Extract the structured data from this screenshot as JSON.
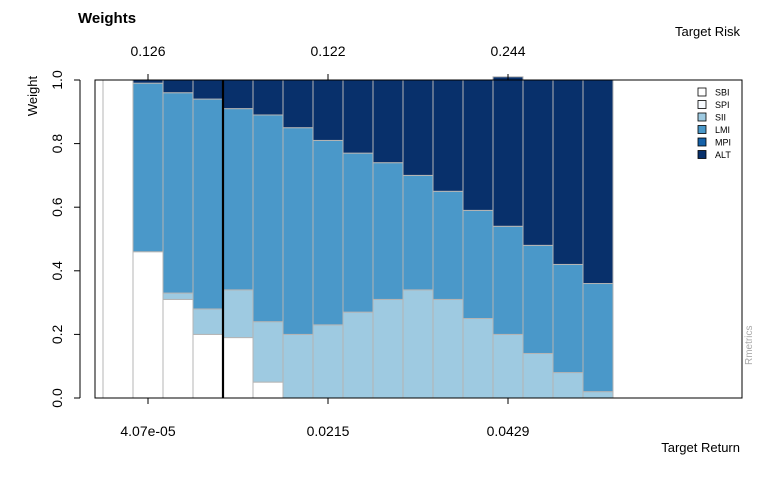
{
  "chart_data": {
    "type": "bar",
    "stacked": true,
    "title": "Weights",
    "ylabel": "Weight",
    "xlabel": "Target Return",
    "top_axis_label": "Target Risk",
    "ylim": [
      0,
      1
    ],
    "y_ticks": [
      "0.0",
      "0.2",
      "0.4",
      "0.6",
      "0.8",
      "1.0"
    ],
    "x_tick_labels": [
      {
        "index": 1,
        "label": "4.07e-05"
      },
      {
        "index": 7,
        "label": "0.0215"
      },
      {
        "index": 13,
        "label": "0.0429"
      }
    ],
    "top_tick_labels": [
      {
        "index": 1,
        "label": "0.126"
      },
      {
        "index": 7,
        "label": "0.122"
      },
      {
        "index": 13,
        "label": "0.244"
      }
    ],
    "vertical_marker_after_index": 3,
    "legend_position": "top-right",
    "watermark": "Rmetrics",
    "series": [
      {
        "name": "SBI",
        "color": "#ffffff",
        "values": [
          1.0,
          0.46,
          0.31,
          0.2,
          0.19,
          0.05,
          0,
          0,
          0,
          0,
          0,
          0,
          0,
          0,
          0,
          0,
          0
        ]
      },
      {
        "name": "SPI",
        "color": "#f7fbff",
        "values": [
          0,
          0,
          0,
          0,
          0,
          0,
          0,
          0,
          0,
          0,
          0,
          0,
          0,
          0,
          0,
          0,
          0
        ]
      },
      {
        "name": "SII",
        "color": "#9ecae1",
        "values": [
          0,
          0,
          0.02,
          0.08,
          0.15,
          0.19,
          0.2,
          0.23,
          0.27,
          0.31,
          0.34,
          0.31,
          0.25,
          0.2,
          0.14,
          0.08,
          0.02
        ]
      },
      {
        "name": "LMI",
        "color": "#4a98c9",
        "values": [
          0,
          0.53,
          0.63,
          0.66,
          0.57,
          0.65,
          0.65,
          0.58,
          0.5,
          0.43,
          0.36,
          0.34,
          0.34,
          0.34,
          0.34,
          0.34,
          0.34
        ]
      },
      {
        "name": "MPI",
        "color": "#1561a8",
        "values": [
          0,
          0,
          0,
          0,
          0,
          0,
          0,
          0,
          0,
          0,
          0,
          0,
          0,
          0,
          0,
          0,
          0
        ]
      },
      {
        "name": "ALT",
        "color": "#08306b",
        "values": [
          0,
          0.01,
          0.04,
          0.06,
          0.09,
          0.11,
          0.15,
          0.19,
          0.23,
          0.26,
          0.3,
          0.35,
          0.41,
          0.47,
          0.52,
          0.58,
          0.64
        ]
      }
    ]
  }
}
